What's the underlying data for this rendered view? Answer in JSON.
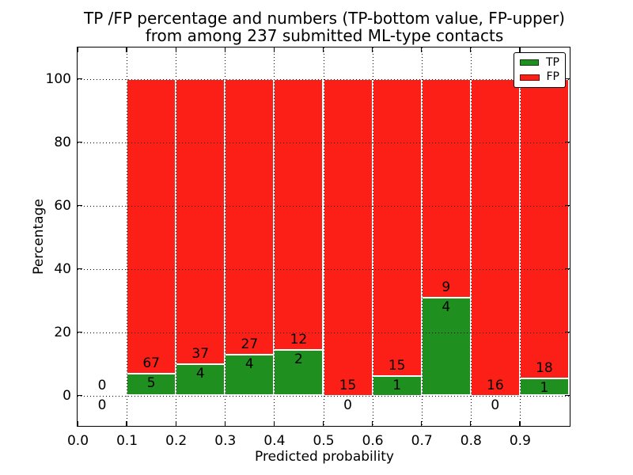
{
  "title_lines": [
    "TP /FP percentage and numbers (TP-bottom value, FP-upper)",
    "from among 237 submitted ML-type contacts"
  ],
  "chart_data": {
    "type": "bar",
    "stacking": "percent-normalized stacked bars, annotated with raw counts",
    "title": "TP /FP percentage and numbers (TP-bottom value, FP-upper) from among 237 submitted ML-type contacts",
    "xlabel": "Predicted probability",
    "ylabel": "Percentage",
    "total_contacts": 237,
    "xlim": [
      0.0,
      1.0
    ],
    "ylim": [
      -10,
      110
    ],
    "grid": "dotted black, horizontal and vertical, drawn above bars",
    "bin_width": 0.1,
    "bin_starts": [
      0.0,
      0.1,
      0.2,
      0.3,
      0.4,
      0.5,
      0.6,
      0.7,
      0.8,
      0.9
    ],
    "xticks": [
      "0.0",
      "0.1",
      "0.2",
      "0.3",
      "0.4",
      "0.5",
      "0.6",
      "0.7",
      "0.8",
      "0.9"
    ],
    "ytick_values": [
      0,
      20,
      40,
      60,
      80,
      100
    ],
    "series": [
      {
        "name": "TP",
        "color": "#1f8f20",
        "counts": [
          0,
          5,
          4,
          4,
          2,
          0,
          1,
          4,
          0,
          1
        ]
      },
      {
        "name": "FP",
        "color": "#fb1f17",
        "counts": [
          0,
          67,
          37,
          27,
          12,
          15,
          15,
          9,
          16,
          18
        ]
      }
    ],
    "tp_percent_by_bin": [
      0.0,
      6.9,
      9.8,
      12.9,
      14.3,
      0.0,
      6.3,
      30.8,
      0.0,
      5.3
    ],
    "legend": {
      "position": "upper right",
      "entries": [
        "TP",
        "FP"
      ]
    }
  }
}
